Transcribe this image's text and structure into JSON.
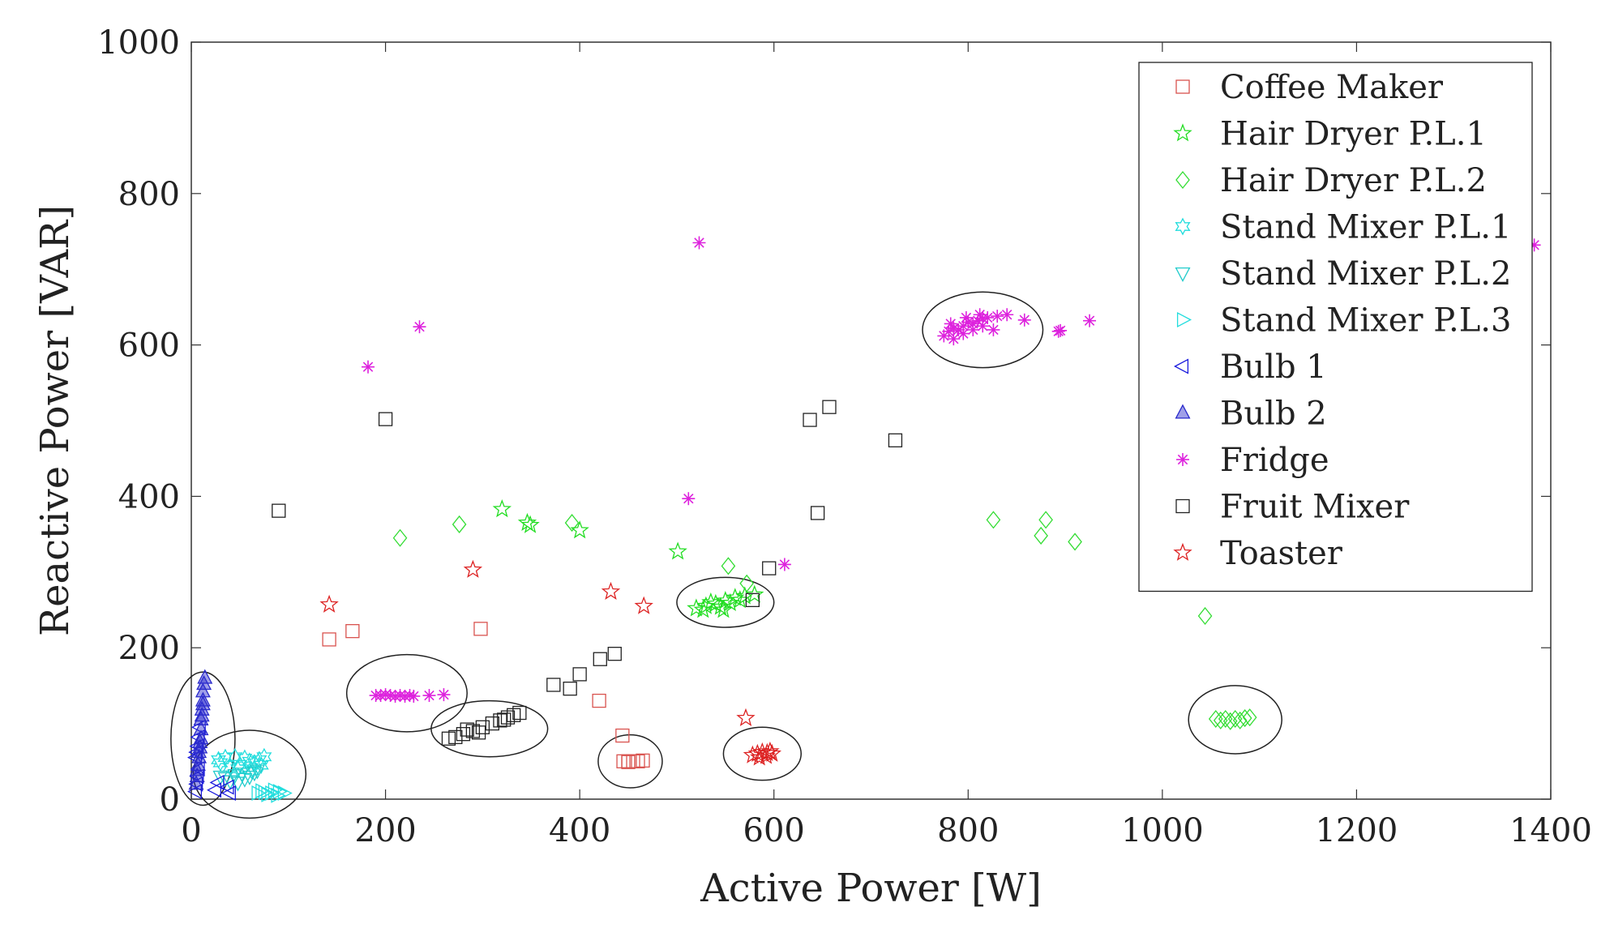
{
  "chart_data": {
    "type": "scatter",
    "xlabel": "Active Power [W]",
    "ylabel": "Reactive Power [VAR]",
    "xlim": [
      0,
      1400
    ],
    "ylim": [
      0,
      1000
    ],
    "x_ticks": [
      0,
      200,
      400,
      600,
      800,
      1000,
      1200,
      1400
    ],
    "y_ticks": [
      0,
      200,
      400,
      600,
      800,
      1000
    ],
    "x_tick_labels": [
      "0",
      "200",
      "400",
      "600",
      "800",
      "1000",
      "1200",
      "1400"
    ],
    "y_tick_labels": [
      "0",
      "200",
      "400",
      "600",
      "800",
      "1000"
    ],
    "grid": false,
    "legend_position": "top-right",
    "series": [
      {
        "name": "Coffee Maker",
        "marker": "square",
        "color": "#d9534f",
        "filled": false,
        "points": [
          [
            142,
            211
          ],
          [
            166,
            222
          ],
          [
            298,
            225
          ],
          [
            420,
            130
          ],
          [
            444,
            84
          ],
          [
            445,
            50
          ],
          [
            450,
            50
          ],
          [
            455,
            50
          ],
          [
            460,
            50
          ],
          [
            465,
            51
          ],
          [
            450,
            49
          ]
        ]
      },
      {
        "name": "Hair Dryer P.L.1",
        "marker": "star5",
        "color": "#22dd22",
        "filled": false,
        "points": [
          [
            320,
            383
          ],
          [
            346,
            365
          ],
          [
            349,
            362
          ],
          [
            501,
            327
          ],
          [
            400,
            355
          ],
          [
            520,
            252
          ],
          [
            530,
            255
          ],
          [
            540,
            258
          ],
          [
            550,
            262
          ],
          [
            560,
            266
          ],
          [
            570,
            268
          ],
          [
            527,
            250
          ],
          [
            535,
            260
          ],
          [
            545,
            254
          ],
          [
            555,
            259
          ],
          [
            565,
            263
          ],
          [
            580,
            270
          ],
          [
            548,
            250
          ]
        ]
      },
      {
        "name": "Hair Dryer P.L.2",
        "marker": "diamond",
        "color": "#33dd33",
        "filled": false,
        "points": [
          [
            215,
            345
          ],
          [
            276,
            363
          ],
          [
            392,
            365
          ],
          [
            553,
            308
          ],
          [
            572,
            285
          ],
          [
            826,
            369
          ],
          [
            880,
            369
          ],
          [
            875,
            348
          ],
          [
            910,
            340
          ],
          [
            1044,
            242
          ],
          [
            1055,
            106
          ],
          [
            1065,
            106
          ],
          [
            1075,
            106
          ],
          [
            1085,
            107
          ],
          [
            1090,
            108
          ],
          [
            1060,
            104
          ],
          [
            1070,
            103
          ],
          [
            1080,
            104
          ]
        ]
      },
      {
        "name": "Stand Mixer P.L.1",
        "marker": "star6",
        "color": "#22dddd",
        "filled": false,
        "points": [
          [
            28,
            52
          ],
          [
            35,
            55
          ],
          [
            45,
            56
          ],
          [
            55,
            54
          ],
          [
            60,
            50
          ],
          [
            65,
            48
          ],
          [
            70,
            52
          ],
          [
            75,
            56
          ],
          [
            50,
            46
          ],
          [
            40,
            42
          ],
          [
            62,
            38
          ],
          [
            48,
            40
          ],
          [
            72,
            45
          ],
          [
            30,
            48
          ]
        ]
      },
      {
        "name": "Stand Mixer P.L.2",
        "marker": "triangle-down",
        "color": "#22cccc",
        "filled": false,
        "points": [
          [
            35,
            28
          ],
          [
            45,
            32
          ],
          [
            52,
            34
          ],
          [
            60,
            30
          ],
          [
            65,
            35
          ],
          [
            40,
            24
          ],
          [
            55,
            27
          ],
          [
            68,
            38
          ],
          [
            30,
            30
          ],
          [
            48,
            22
          ]
        ]
      },
      {
        "name": "Stand Mixer P.L.3",
        "marker": "triangle-right",
        "color": "#22dddd",
        "filled": false,
        "points": [
          [
            68,
            8
          ],
          [
            75,
            9
          ],
          [
            82,
            8
          ],
          [
            90,
            10
          ],
          [
            95,
            8
          ],
          [
            72,
            11
          ],
          [
            85,
            12
          ],
          [
            78,
            6
          ],
          [
            88,
            5
          ]
        ]
      },
      {
        "name": "Bulb 1",
        "marker": "triangle-left",
        "color": "#1a1add",
        "filled": false,
        "points": [
          [
            5,
            10
          ],
          [
            6,
            20
          ],
          [
            7,
            30
          ],
          [
            8,
            40
          ],
          [
            5,
            55
          ],
          [
            6,
            62
          ],
          [
            7,
            70
          ],
          [
            8,
            82
          ],
          [
            9,
            95
          ],
          [
            28,
            22
          ],
          [
            38,
            16
          ],
          [
            40,
            8
          ],
          [
            25,
            12
          ]
        ]
      },
      {
        "name": "Bulb 2",
        "marker": "triangle-up",
        "color": "#2a2acc",
        "filled": true,
        "points": [
          [
            5,
            20
          ],
          [
            6,
            30
          ],
          [
            7,
            45
          ],
          [
            8,
            55
          ],
          [
            9,
            68
          ],
          [
            10,
            80
          ],
          [
            10,
            92
          ],
          [
            10,
            105
          ],
          [
            11,
            118
          ],
          [
            12,
            130
          ],
          [
            12,
            142
          ],
          [
            13,
            152
          ],
          [
            14,
            160
          ],
          [
            6,
            38
          ],
          [
            8,
            62
          ],
          [
            9,
            75
          ],
          [
            11,
            110
          ],
          [
            12,
            125
          ]
        ]
      },
      {
        "name": "Fridge",
        "marker": "asterisk",
        "color": "#dd22dd",
        "filled": false,
        "points": [
          [
            182,
            571
          ],
          [
            235,
            624
          ],
          [
            523,
            735
          ],
          [
            512,
            397
          ],
          [
            611,
            310
          ],
          [
            1383,
            732
          ],
          [
            925,
            632
          ],
          [
            893,
            618
          ],
          [
            858,
            633
          ],
          [
            826,
            620
          ],
          [
            895,
            619
          ],
          [
            190,
            137
          ],
          [
            195,
            137
          ],
          [
            200,
            138
          ],
          [
            205,
            137
          ],
          [
            210,
            136
          ],
          [
            215,
            137
          ],
          [
            220,
            136
          ],
          [
            225,
            137
          ],
          [
            229,
            136
          ],
          [
            245,
            137
          ],
          [
            260,
            138
          ],
          [
            775,
            612
          ],
          [
            780,
            618
          ],
          [
            785,
            622
          ],
          [
            790,
            620
          ],
          [
            795,
            625
          ],
          [
            800,
            630
          ],
          [
            805,
            628
          ],
          [
            810,
            632
          ],
          [
            815,
            635
          ],
          [
            820,
            636
          ],
          [
            830,
            638
          ],
          [
            840,
            640
          ],
          [
            785,
            608
          ],
          [
            795,
            615
          ],
          [
            805,
            620
          ],
          [
            815,
            625
          ],
          [
            782,
            628
          ],
          [
            798,
            636
          ],
          [
            812,
            640
          ]
        ]
      },
      {
        "name": "Fruit Mixer",
        "marker": "square",
        "color": "#222222",
        "filled": false,
        "points": [
          [
            90,
            381
          ],
          [
            200,
            502
          ],
          [
            373,
            151
          ],
          [
            390,
            146
          ],
          [
            400,
            165
          ],
          [
            421,
            185
          ],
          [
            436,
            192
          ],
          [
            595,
            305
          ],
          [
            578,
            263
          ],
          [
            637,
            501
          ],
          [
            657,
            518
          ],
          [
            645,
            378
          ],
          [
            725,
            474
          ],
          [
            265,
            80
          ],
          [
            272,
            82
          ],
          [
            280,
            86
          ],
          [
            290,
            90
          ],
          [
            300,
            95
          ],
          [
            310,
            100
          ],
          [
            318,
            104
          ],
          [
            326,
            108
          ],
          [
            332,
            111
          ],
          [
            338,
            114
          ],
          [
            284,
            92
          ],
          [
            296,
            88
          ],
          [
            322,
            105
          ]
        ]
      },
      {
        "name": "Toaster",
        "marker": "star5",
        "color": "#dd2222",
        "filled": false,
        "points": [
          [
            142,
            257
          ],
          [
            290,
            303
          ],
          [
            432,
            274
          ],
          [
            466,
            255
          ],
          [
            571,
            107
          ],
          [
            578,
            58
          ],
          [
            583,
            60
          ],
          [
            588,
            62
          ],
          [
            593,
            61
          ],
          [
            598,
            60
          ],
          [
            585,
            55
          ],
          [
            592,
            57
          ],
          [
            596,
            63
          ]
        ]
      }
    ],
    "ellipses": [
      {
        "cx": 12,
        "cy": 80,
        "rx": 33,
        "ry": 88
      },
      {
        "cx": 60,
        "cy": 33,
        "rx": 58,
        "ry": 58
      },
      {
        "cx": 222,
        "cy": 140,
        "rx": 62,
        "ry": 51
      },
      {
        "cx": 307,
        "cy": 93,
        "rx": 60,
        "ry": 37
      },
      {
        "cx": 452,
        "cy": 50,
        "rx": 33,
        "ry": 35
      },
      {
        "cx": 588,
        "cy": 60,
        "rx": 40,
        "ry": 35
      },
      {
        "cx": 550,
        "cy": 260,
        "rx": 50,
        "ry": 33
      },
      {
        "cx": 815,
        "cy": 620,
        "rx": 62,
        "ry": 50
      },
      {
        "cx": 1075,
        "cy": 105,
        "rx": 48,
        "ry": 45
      }
    ]
  }
}
